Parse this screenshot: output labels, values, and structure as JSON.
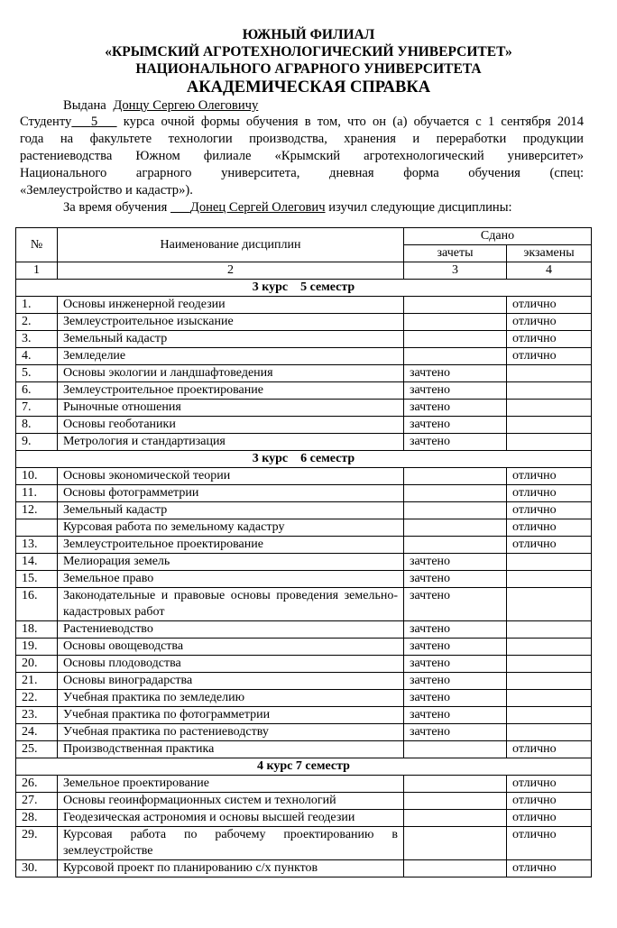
{
  "header": {
    "line1": "ЮЖНЫЙ ФИЛИАЛ",
    "line2": "«КРЫМСКИЙ АГРОТЕХНОЛОГИЧЕСКИЙ УНИВЕРСИТЕТ»",
    "line3": "НАЦИОНАЛЬНОГО АГРАРНОГО УНИВЕРСИТЕТА",
    "title": "АКАДЕМИЧЕСКАЯ СПРАВКА"
  },
  "issued": {
    "label": "Выдана",
    "name": "Донцу Сергею Олеговичу"
  },
  "body": {
    "l1a": "Студенту",
    "course": "5",
    "l1b": "курса очной формы обучения в том, что он (а) обучается с 1 сентября 2014",
    "l2": "года на факультете технологии производства, хранения и переработки продукции",
    "l3": "растениеводства Южном филиале «Крымский агротехнологический университет»",
    "l4": "Национального аграрного университета, дневная форма обучения (спец:",
    "l5": "«Землеустройство и кадастр»).",
    "l6a": "За время обучения",
    "l6name": "Донец Сергей Олегович",
    "l6b": "изучил следующие дисциплины:"
  },
  "table": {
    "headers": {
      "num": "№",
      "name": "Наименование дисциплин",
      "passed": "Сдано",
      "credits": "зачеты",
      "exams": "экзамены"
    },
    "colnums": [
      "1",
      "2",
      "3",
      "4"
    ],
    "rows": [
      {
        "section": "3 курс    5 семестр"
      },
      {
        "n": "1.",
        "name": "Основы инженерной геодезии",
        "c": "",
        "e": "отлично"
      },
      {
        "n": "2.",
        "name": "Землеустроительное изыскание",
        "c": "",
        "e": "отлично"
      },
      {
        "n": "3.",
        "name": "Земельный кадастр",
        "c": "",
        "e": "отлично"
      },
      {
        "n": "4.",
        "name": "Земледелие",
        "c": "",
        "e": "отлично"
      },
      {
        "n": "5.",
        "name": "Основы экологии и ландшафтоведения",
        "c": "зачтено",
        "e": ""
      },
      {
        "n": "6.",
        "name": "Землеустроительное проектирование",
        "c": "зачтено",
        "e": ""
      },
      {
        "n": "7.",
        "name": "Рыночные отношения",
        "c": "зачтено",
        "e": ""
      },
      {
        "n": "8.",
        "name": "Основы геоботаники",
        "c": "зачтено",
        "e": ""
      },
      {
        "n": "9.",
        "name": "Метрология и стандартизация",
        "c": "зачтено",
        "e": ""
      },
      {
        "section": "3 курс    6 семестр"
      },
      {
        "n": "10.",
        "name": "Основы экономической теории",
        "c": "",
        "e": "отлично"
      },
      {
        "n": "11.",
        "name": "Основы фотограмметрии",
        "c": "",
        "e": "отлично"
      },
      {
        "n": "12.",
        "name": "Земельный кадастр",
        "c": "",
        "e": "отлично"
      },
      {
        "n": "",
        "name": "Курсовая работа по земельному кадастру",
        "c": "",
        "e": "отлично"
      },
      {
        "n": "13.",
        "name": "Землеустроительное проектирование",
        "c": "",
        "e": "отлично"
      },
      {
        "n": "14.",
        "name": "Мелиорация земель",
        "c": "зачтено",
        "e": ""
      },
      {
        "n": "15.",
        "name": "Земельное право",
        "c": "зачтено",
        "e": ""
      },
      {
        "n": "16.",
        "name": "Законодательные и правовые основы проведения земельно-кадастровых работ",
        "c": "зачтено",
        "e": ""
      },
      {
        "n": "18.",
        "name": "Растениеводство",
        "c": "зачтено",
        "e": ""
      },
      {
        "n": "19.",
        "name": "Основы овощеводства",
        "c": "зачтено",
        "e": ""
      },
      {
        "n": "20.",
        "name": "Основы плодоводства",
        "c": "зачтено",
        "e": ""
      },
      {
        "n": "21.",
        "name": "Основы виноградарства",
        "c": "зачтено",
        "e": ""
      },
      {
        "n": "22.",
        "name": "Учебная практика по земледелию",
        "c": "зачтено",
        "e": ""
      },
      {
        "n": "23.",
        "name": "Учебная практика по фотограмметрии",
        "c": "зачтено",
        "e": ""
      },
      {
        "n": "24.",
        "name": "Учебная практика по растениеводству",
        "c": "зачтено",
        "e": ""
      },
      {
        "n": "25.",
        "name": "Производственная практика",
        "c": "",
        "e": "отлично"
      },
      {
        "section": "4 курс 7 семестр"
      },
      {
        "n": "26.",
        "name": "Земельное проектирование",
        "c": "",
        "e": "отлично"
      },
      {
        "n": "27.",
        "name": "Основы геоинформационных систем и технологий",
        "c": "",
        "e": "отлично"
      },
      {
        "n": "28.",
        "name": "Геодезическая астрономия и основы высшей геодезии",
        "c": "",
        "e": "отлично"
      },
      {
        "n": "29.",
        "name": "Курсовая работа по рабочему проектированию в землеустройстве",
        "c": "",
        "e": "отлично"
      },
      {
        "n": "30.",
        "name": "Курсовой проект по планированию с/х пунктов",
        "c": "",
        "e": "отлично"
      }
    ]
  }
}
